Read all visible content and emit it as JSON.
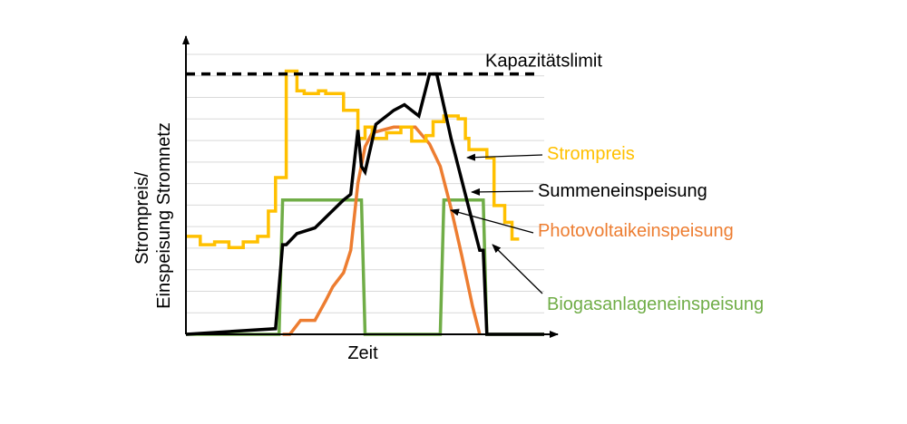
{
  "chart_data": {
    "type": "line",
    "title": "",
    "xlabel": "Zeit",
    "ylabel_lines": [
      "Strompreis/",
      "Einspeisung Stromnetz"
    ],
    "xlim": [
      0,
      100
    ],
    "ylim": [
      0,
      100
    ],
    "grid": true,
    "reference_line": {
      "name": "Kapazitätslimit",
      "value": 93,
      "color": "#000000",
      "style": "dashed"
    },
    "series": [
      {
        "name": "Strompreis",
        "color": "#FFC000",
        "label_color": "#FFC000",
        "points": [
          [
            0,
            35
          ],
          [
            4,
            35
          ],
          [
            4,
            32
          ],
          [
            8,
            32
          ],
          [
            8,
            33
          ],
          [
            12,
            33
          ],
          [
            12,
            31
          ],
          [
            16,
            31
          ],
          [
            16,
            33
          ],
          [
            20,
            33
          ],
          [
            20,
            35
          ],
          [
            23,
            35
          ],
          [
            23,
            44
          ],
          [
            25,
            44
          ],
          [
            25,
            56
          ],
          [
            28,
            56
          ],
          [
            28,
            94
          ],
          [
            31,
            94
          ],
          [
            31,
            87
          ],
          [
            33,
            87
          ],
          [
            33,
            86
          ],
          [
            37,
            86
          ],
          [
            37,
            87
          ],
          [
            39,
            87
          ],
          [
            39,
            86
          ],
          [
            44,
            86
          ],
          [
            44,
            80
          ],
          [
            48,
            80
          ],
          [
            48,
            70
          ],
          [
            50,
            70
          ],
          [
            50,
            74
          ],
          [
            52,
            74
          ],
          [
            52,
            70
          ],
          [
            56,
            70
          ],
          [
            56,
            72
          ],
          [
            60,
            72
          ],
          [
            60,
            74
          ],
          [
            63,
            74
          ],
          [
            63,
            69
          ],
          [
            67,
            69
          ],
          [
            67,
            71
          ],
          [
            69,
            71
          ],
          [
            69,
            76
          ],
          [
            72,
            76
          ],
          [
            72,
            78
          ],
          [
            76,
            78
          ],
          [
            76,
            77
          ],
          [
            78,
            77
          ],
          [
            78,
            70
          ],
          [
            79,
            70
          ],
          [
            79,
            66
          ],
          [
            84,
            66
          ],
          [
            84,
            63
          ],
          [
            86,
            63
          ],
          [
            86,
            46
          ],
          [
            89,
            46
          ],
          [
            89,
            40
          ],
          [
            91,
            40
          ],
          [
            91,
            34
          ],
          [
            93,
            34
          ]
        ]
      },
      {
        "name": "Summeneinspeisung",
        "color": "#000000",
        "label_color": "#000000",
        "points": [
          [
            0,
            0
          ],
          [
            25,
            2
          ],
          [
            27,
            32
          ],
          [
            28,
            32
          ],
          [
            31,
            36
          ],
          [
            36,
            38
          ],
          [
            40,
            43
          ],
          [
            44,
            48
          ],
          [
            46,
            50
          ],
          [
            48,
            73
          ],
          [
            49,
            60
          ],
          [
            50,
            58
          ],
          [
            53,
            75
          ],
          [
            58,
            80
          ],
          [
            61,
            82
          ],
          [
            65,
            78
          ],
          [
            68,
            93
          ],
          [
            70,
            93
          ],
          [
            74,
            70
          ],
          [
            79,
            45
          ],
          [
            82,
            30
          ],
          [
            83,
            30
          ],
          [
            84,
            0
          ],
          [
            100,
            0
          ]
        ]
      },
      {
        "name": "Photovoltaikeinspeisung",
        "color": "#ED7D31",
        "label_color": "#ED7D31",
        "points": [
          [
            27,
            0
          ],
          [
            29,
            0
          ],
          [
            32,
            5
          ],
          [
            36,
            5
          ],
          [
            39,
            12
          ],
          [
            41,
            17
          ],
          [
            44,
            22
          ],
          [
            46,
            30
          ],
          [
            48,
            54
          ],
          [
            50,
            67
          ],
          [
            52,
            72
          ],
          [
            58,
            74
          ],
          [
            64,
            74
          ],
          [
            68,
            68
          ],
          [
            71,
            60
          ],
          [
            74,
            45
          ],
          [
            77,
            28
          ],
          [
            80,
            10
          ],
          [
            82,
            0
          ]
        ]
      },
      {
        "name": "Biogasanlageneinspeisung",
        "color": "#70AD47",
        "label_color": "#70AD47",
        "points": [
          [
            0,
            0
          ],
          [
            26,
            0
          ],
          [
            27,
            48
          ],
          [
            49,
            48
          ],
          [
            50,
            0
          ],
          [
            71,
            0
          ],
          [
            72,
            48
          ],
          [
            83,
            48
          ],
          [
            84,
            0
          ],
          [
            100,
            0
          ]
        ]
      }
    ],
    "annotations": [
      {
        "series": "Strompreis",
        "text": "Strompreis"
      },
      {
        "series": "Summeneinspeisung",
        "text": "Summeneinspeisung"
      },
      {
        "series": "Photovoltaikeinspeisung",
        "text": "Photovoltaikeinspeisung"
      },
      {
        "series": "Biogasanlageneinspeisung",
        "text": "Biogasanlageneinspeisung"
      }
    ]
  }
}
